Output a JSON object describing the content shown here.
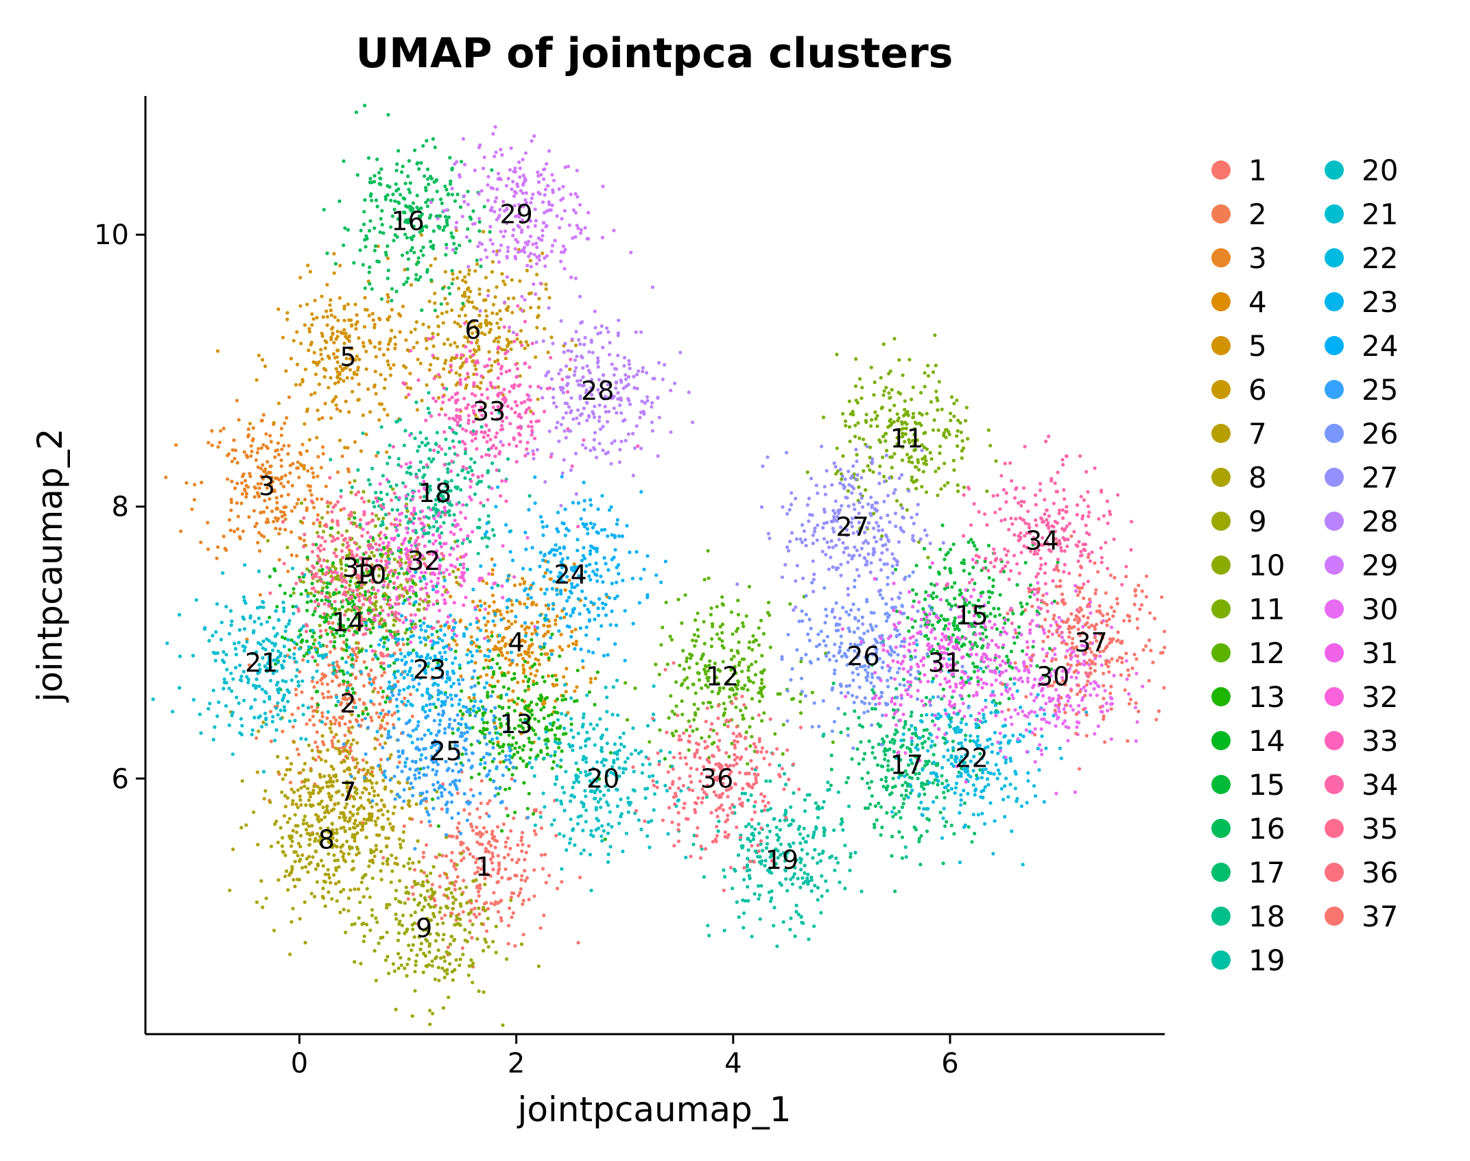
{
  "chart_data": {
    "type": "scatter",
    "title": "UMAP of jointpca clusters",
    "xlabel": "jointpcaumap_1",
    "ylabel": "jointpcaumap_2",
    "xlim": [
      -1.42,
      7.98
    ],
    "ylim": [
      4.12,
      11.02
    ],
    "xticks": [
      0,
      2,
      4,
      6
    ],
    "yticks": [
      6,
      8,
      10
    ],
    "legend_placement": "right",
    "legend_columns": 2,
    "grid": false,
    "clusters": [
      {
        "name": "1",
        "color": "#F8766D",
        "x": 1.7,
        "y": 5.35
      },
      {
        "name": "2",
        "color": "#F27D53",
        "x": 0.45,
        "y": 6.55
      },
      {
        "name": "3",
        "color": "#E88526",
        "x": -0.3,
        "y": 8.15
      },
      {
        "name": "4",
        "color": "#DE8C00",
        "x": 2.0,
        "y": 7.0
      },
      {
        "name": "5",
        "color": "#D39200",
        "x": 0.45,
        "y": 9.1
      },
      {
        "name": "6",
        "color": "#C79800",
        "x": 1.6,
        "y": 9.3
      },
      {
        "name": "7",
        "color": "#B79F00",
        "x": 0.45,
        "y": 5.9
      },
      {
        "name": "8",
        "color": "#AAA300",
        "x": 0.25,
        "y": 5.55
      },
      {
        "name": "9",
        "color": "#9CA700",
        "x": 1.15,
        "y": 4.9
      },
      {
        "name": "10",
        "color": "#8CAB00",
        "x": 0.65,
        "y": 7.5
      },
      {
        "name": "11",
        "color": "#7AAE00",
        "x": 5.6,
        "y": 8.5
      },
      {
        "name": "12",
        "color": "#5BB300",
        "x": 3.9,
        "y": 6.75
      },
      {
        "name": "13",
        "color": "#1EB500",
        "x": 2.0,
        "y": 6.4
      },
      {
        "name": "14",
        "color": "#00B81F",
        "x": 0.45,
        "y": 7.15
      },
      {
        "name": "15",
        "color": "#00BA38",
        "x": 6.2,
        "y": 7.2
      },
      {
        "name": "16",
        "color": "#00BC59",
        "x": 1.0,
        "y": 10.1
      },
      {
        "name": "17",
        "color": "#00BE6C",
        "x": 5.6,
        "y": 6.1
      },
      {
        "name": "18",
        "color": "#00BF8B",
        "x": 1.25,
        "y": 8.1
      },
      {
        "name": "19",
        "color": "#00C0A3",
        "x": 4.45,
        "y": 5.4
      },
      {
        "name": "20",
        "color": "#00BFC4",
        "x": 2.8,
        "y": 6.0
      },
      {
        "name": "21",
        "color": "#00BDD0",
        "x": -0.35,
        "y": 6.85
      },
      {
        "name": "22",
        "color": "#00BAE0",
        "x": 6.2,
        "y": 6.15
      },
      {
        "name": "23",
        "color": "#00B5EE",
        "x": 1.2,
        "y": 6.8
      },
      {
        "name": "24",
        "color": "#00B0F6",
        "x": 2.5,
        "y": 7.5
      },
      {
        "name": "25",
        "color": "#35A2FF",
        "x": 1.35,
        "y": 6.2
      },
      {
        "name": "26",
        "color": "#7997FF",
        "x": 5.2,
        "y": 6.9
      },
      {
        "name": "27",
        "color": "#9590FF",
        "x": 5.1,
        "y": 7.85
      },
      {
        "name": "28",
        "color": "#B983FF",
        "x": 2.75,
        "y": 8.85
      },
      {
        "name": "29",
        "color": "#CF79FF",
        "x": 2.0,
        "y": 10.15
      },
      {
        "name": "30",
        "color": "#E76BF3",
        "x": 6.95,
        "y": 6.75
      },
      {
        "name": "31",
        "color": "#F062E8",
        "x": 5.95,
        "y": 6.85
      },
      {
        "name": "32",
        "color": "#FA62DB",
        "x": 1.15,
        "y": 7.6
      },
      {
        "name": "33",
        "color": "#FF62BC",
        "x": 1.75,
        "y": 8.7
      },
      {
        "name": "34",
        "color": "#FF66A8",
        "x": 6.85,
        "y": 7.75
      },
      {
        "name": "35",
        "color": "#FF6C90",
        "x": 0.55,
        "y": 7.55
      },
      {
        "name": "36",
        "color": "#FC717F",
        "x": 3.85,
        "y": 6.0
      },
      {
        "name": "37",
        "color": "#F8766D",
        "x": 7.3,
        "y": 7.0
      }
    ]
  }
}
